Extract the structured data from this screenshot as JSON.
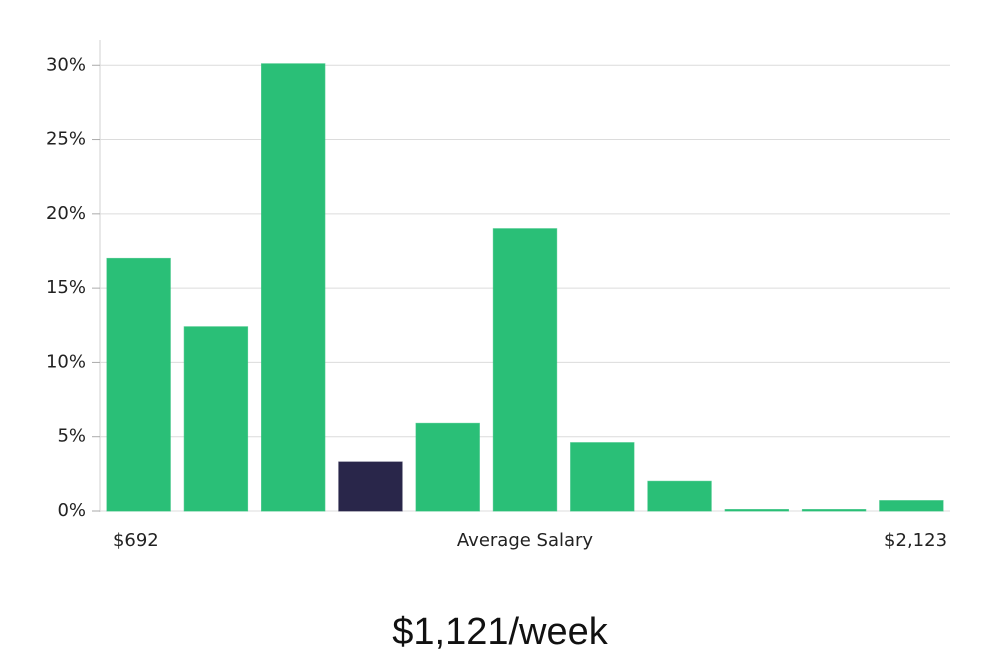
{
  "chart_data": {
    "type": "bar",
    "categories": [
      "$692",
      null,
      null,
      null,
      null,
      null,
      null,
      null,
      null,
      null,
      "$2,123"
    ],
    "values": [
      17.0,
      12.4,
      30.1,
      3.3,
      5.9,
      19.0,
      4.6,
      2.0,
      0.1,
      0.1,
      0.7
    ],
    "colors": [
      "#2abf77",
      "#2abf77",
      "#2abf77",
      "#29264a",
      "#2abf77",
      "#2abf77",
      "#2abf77",
      "#2abf77",
      "#2abf77",
      "#2abf77",
      "#2abf77"
    ],
    "x_label": "Average Salary",
    "ylim": [
      0,
      31.7
    ],
    "yticks": [
      {
        "value": 0,
        "label": "0%"
      },
      {
        "value": 5,
        "label": "5%"
      },
      {
        "value": 10,
        "label": "10%"
      },
      {
        "value": 15,
        "label": "15%"
      },
      {
        "value": 20,
        "label": "20%"
      },
      {
        "value": 25,
        "label": "25%"
      },
      {
        "value": 30,
        "label": "30%"
      }
    ],
    "grid": true,
    "summary": "$1,121/week"
  }
}
